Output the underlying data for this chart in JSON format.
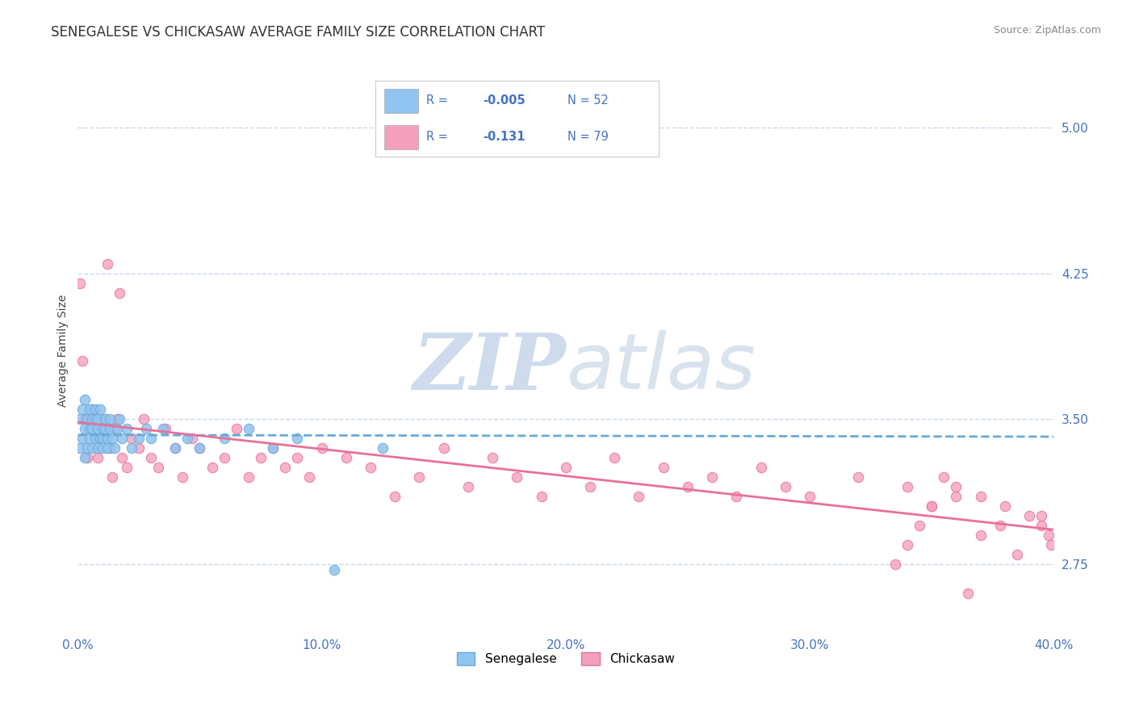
{
  "title": "SENEGALESE VS CHICKASAW AVERAGE FAMILY SIZE CORRELATION CHART",
  "source_text": "Source: ZipAtlas.com",
  "ylabel": "Average Family Size",
  "xlim": [
    0.0,
    0.4
  ],
  "ylim": [
    2.4,
    5.3
  ],
  "yticks": [
    2.75,
    3.5,
    4.25,
    5.0
  ],
  "xticks": [
    0.0,
    0.1,
    0.2,
    0.3,
    0.4
  ],
  "xticklabels": [
    "0.0%",
    "10.0%",
    "20.0%",
    "30.0%",
    "40.0%"
  ],
  "title_fontsize": 12,
  "axis_label_fontsize": 10,
  "tick_fontsize": 11,
  "legend_R1": "-0.005",
  "legend_N1": "52",
  "legend_R2": "-0.131",
  "legend_N2": "79",
  "legend_label1": "Senegalese",
  "legend_label2": "Chickasaw",
  "color_senegalese": "#91c4f0",
  "color_chickasaw": "#f4a0bc",
  "color_trend_senegalese": "#6aaad8",
  "color_trend_chickasaw": "#e8709a",
  "color_axis_blue": "#4472c4",
  "background_color": "#ffffff",
  "grid_color": "#c8d8ee",
  "watermark_color": "#d0dff0",
  "senegalese_x": [
    0.001,
    0.001,
    0.002,
    0.002,
    0.003,
    0.003,
    0.003,
    0.004,
    0.004,
    0.005,
    0.005,
    0.005,
    0.006,
    0.006,
    0.006,
    0.007,
    0.007,
    0.007,
    0.008,
    0.008,
    0.008,
    0.009,
    0.009,
    0.01,
    0.01,
    0.01,
    0.011,
    0.011,
    0.012,
    0.012,
    0.013,
    0.013,
    0.014,
    0.015,
    0.016,
    0.017,
    0.018,
    0.02,
    0.022,
    0.025,
    0.028,
    0.03,
    0.035,
    0.04,
    0.045,
    0.05,
    0.06,
    0.07,
    0.08,
    0.09,
    0.105,
    0.125
  ],
  "senegalese_y": [
    3.5,
    3.35,
    3.55,
    3.4,
    3.6,
    3.45,
    3.3,
    3.5,
    3.35,
    3.55,
    3.4,
    3.45,
    3.5,
    3.35,
    3.45,
    3.55,
    3.4,
    3.5,
    3.45,
    3.35,
    3.5,
    3.4,
    3.55,
    3.45,
    3.4,
    3.35,
    3.5,
    3.45,
    3.4,
    3.35,
    3.5,
    3.45,
    3.4,
    3.35,
    3.45,
    3.5,
    3.4,
    3.45,
    3.35,
    3.4,
    3.45,
    3.4,
    3.45,
    3.35,
    3.4,
    3.35,
    3.4,
    3.45,
    3.35,
    3.4,
    2.72,
    3.35
  ],
  "chickasaw_x": [
    0.001,
    0.002,
    0.003,
    0.004,
    0.005,
    0.006,
    0.007,
    0.008,
    0.01,
    0.011,
    0.012,
    0.013,
    0.014,
    0.015,
    0.016,
    0.017,
    0.018,
    0.02,
    0.022,
    0.025,
    0.027,
    0.03,
    0.033,
    0.036,
    0.04,
    0.043,
    0.047,
    0.05,
    0.055,
    0.06,
    0.065,
    0.07,
    0.075,
    0.08,
    0.085,
    0.09,
    0.095,
    0.1,
    0.11,
    0.12,
    0.13,
    0.14,
    0.15,
    0.16,
    0.17,
    0.18,
    0.19,
    0.2,
    0.21,
    0.22,
    0.23,
    0.24,
    0.25,
    0.26,
    0.27,
    0.28,
    0.29,
    0.3,
    0.32,
    0.34,
    0.35,
    0.36,
    0.37,
    0.38,
    0.39,
    0.395,
    0.398,
    0.399,
    0.395,
    0.385,
    0.378,
    0.37,
    0.365,
    0.36,
    0.355,
    0.35,
    0.345,
    0.34,
    0.335
  ],
  "chickasaw_y": [
    4.2,
    3.8,
    3.5,
    3.3,
    3.45,
    3.55,
    3.4,
    3.3,
    3.45,
    3.5,
    4.3,
    3.35,
    3.2,
    3.45,
    3.5,
    4.15,
    3.3,
    3.25,
    3.4,
    3.35,
    3.5,
    3.3,
    3.25,
    3.45,
    3.35,
    3.2,
    3.4,
    3.35,
    3.25,
    3.3,
    3.45,
    3.2,
    3.3,
    3.35,
    3.25,
    3.3,
    3.2,
    3.35,
    3.3,
    3.25,
    3.1,
    3.2,
    3.35,
    3.15,
    3.3,
    3.2,
    3.1,
    3.25,
    3.15,
    3.3,
    3.1,
    3.25,
    3.15,
    3.2,
    3.1,
    3.25,
    3.15,
    3.1,
    3.2,
    3.15,
    3.05,
    3.15,
    3.1,
    3.05,
    3.0,
    2.95,
    2.9,
    2.85,
    3.0,
    2.8,
    2.95,
    2.9,
    2.6,
    3.1,
    3.2,
    3.05,
    2.95,
    2.85,
    2.75
  ]
}
